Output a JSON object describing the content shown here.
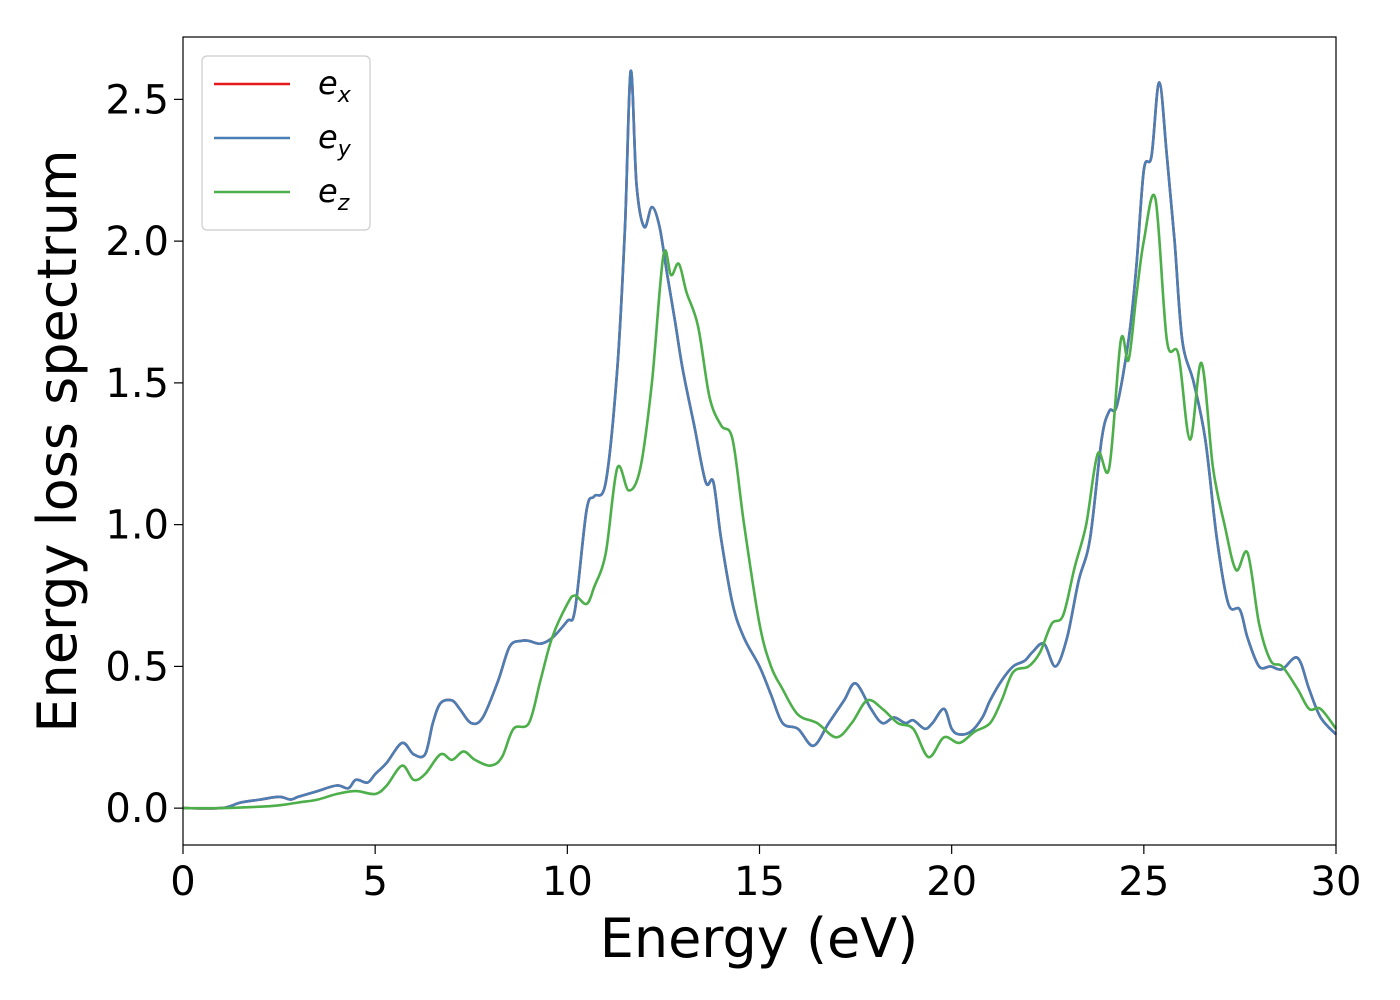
{
  "chart_data": {
    "type": "line",
    "xlabel": "Energy (eV)",
    "ylabel": "Energy loss spectrum",
    "xlim": [
      0,
      30
    ],
    "ylim": [
      -0.13,
      2.72
    ],
    "xticks": [
      0,
      5,
      10,
      15,
      20,
      25,
      30
    ],
    "xtick_labels": [
      "0",
      "5",
      "10",
      "15",
      "20",
      "25",
      "30"
    ],
    "yticks": [
      0.0,
      0.5,
      1.0,
      1.5,
      2.0,
      2.5
    ],
    "ytick_labels": [
      "0.0",
      "0.5",
      "1.0",
      "1.5",
      "2.0",
      "2.5"
    ],
    "grid": false,
    "legend_position": "top-left",
    "series": [
      {
        "name": "e",
        "sub": "x",
        "color": "#e41a1c",
        "x": [
          0,
          1,
          1.5,
          2,
          2.5,
          2.8,
          3,
          3.5,
          4,
          4.3,
          4.5,
          4.8,
          5,
          5.3,
          5.7,
          6,
          6.3,
          6.5,
          6.7,
          7,
          7.2,
          7.5,
          7.8,
          8.2,
          8.5,
          8.8,
          9,
          9.3,
          9.6,
          10,
          10.2,
          10.5,
          10.7,
          11,
          11.3,
          11.5,
          11.65,
          11.8,
          12,
          12.2,
          12.4,
          12.6,
          12.8,
          13,
          13.3,
          13.6,
          13.8,
          14,
          14.3,
          14.6,
          15,
          15.3,
          15.6,
          16,
          16.4,
          16.8,
          17.2,
          17.5,
          17.9,
          18.2,
          18.5,
          18.8,
          19,
          19.3,
          19.5,
          19.8,
          20,
          20.2,
          20.5,
          20.8,
          21,
          21.3,
          21.6,
          21.9,
          22.1,
          22.4,
          22.7,
          23,
          23.3,
          23.6,
          23.9,
          24.1,
          24.3,
          24.6,
          24.8,
          25,
          25.2,
          25.4,
          25.6,
          25.8,
          26,
          26.3,
          26.6,
          26.9,
          27.2,
          27.5,
          27.7,
          28,
          28.3,
          28.6,
          29,
          29.3,
          29.6,
          30
        ],
        "y": [
          0,
          0,
          0.02,
          0.03,
          0.04,
          0.03,
          0.04,
          0.06,
          0.08,
          0.07,
          0.1,
          0.09,
          0.12,
          0.16,
          0.23,
          0.19,
          0.19,
          0.3,
          0.37,
          0.38,
          0.35,
          0.3,
          0.32,
          0.45,
          0.57,
          0.59,
          0.59,
          0.58,
          0.6,
          0.66,
          0.7,
          1.05,
          1.1,
          1.15,
          1.55,
          2.05,
          2.6,
          2.2,
          2.05,
          2.12,
          2.05,
          1.88,
          1.72,
          1.55,
          1.35,
          1.15,
          1.15,
          0.95,
          0.72,
          0.6,
          0.5,
          0.4,
          0.3,
          0.28,
          0.22,
          0.3,
          0.38,
          0.44,
          0.35,
          0.3,
          0.32,
          0.3,
          0.31,
          0.28,
          0.3,
          0.35,
          0.28,
          0.26,
          0.27,
          0.32,
          0.38,
          0.45,
          0.5,
          0.52,
          0.55,
          0.58,
          0.5,
          0.6,
          0.8,
          0.95,
          1.3,
          1.4,
          1.42,
          1.65,
          1.9,
          2.25,
          2.3,
          2.56,
          2.3,
          2.0,
          1.65,
          1.5,
          1.3,
          0.95,
          0.72,
          0.7,
          0.6,
          0.5,
          0.5,
          0.49,
          0.53,
          0.42,
          0.32,
          0.26
        ]
      },
      {
        "name": "e",
        "sub": "y",
        "color": "#4a7fb5",
        "x": [
          0,
          1,
          1.5,
          2,
          2.5,
          2.8,
          3,
          3.5,
          4,
          4.3,
          4.5,
          4.8,
          5,
          5.3,
          5.7,
          6,
          6.3,
          6.5,
          6.7,
          7,
          7.2,
          7.5,
          7.8,
          8.2,
          8.5,
          8.8,
          9,
          9.3,
          9.6,
          10,
          10.2,
          10.5,
          10.7,
          11,
          11.3,
          11.5,
          11.65,
          11.8,
          12,
          12.2,
          12.4,
          12.6,
          12.8,
          13,
          13.3,
          13.6,
          13.8,
          14,
          14.3,
          14.6,
          15,
          15.3,
          15.6,
          16,
          16.4,
          16.8,
          17.2,
          17.5,
          17.9,
          18.2,
          18.5,
          18.8,
          19,
          19.3,
          19.5,
          19.8,
          20,
          20.2,
          20.5,
          20.8,
          21,
          21.3,
          21.6,
          21.9,
          22.1,
          22.4,
          22.7,
          23,
          23.3,
          23.6,
          23.9,
          24.1,
          24.3,
          24.6,
          24.8,
          25,
          25.2,
          25.4,
          25.6,
          25.8,
          26,
          26.3,
          26.6,
          26.9,
          27.2,
          27.5,
          27.7,
          28,
          28.3,
          28.6,
          29,
          29.3,
          29.6,
          30
        ],
        "y": [
          0,
          0,
          0.02,
          0.03,
          0.04,
          0.03,
          0.04,
          0.06,
          0.08,
          0.07,
          0.1,
          0.09,
          0.12,
          0.16,
          0.23,
          0.19,
          0.19,
          0.3,
          0.37,
          0.38,
          0.35,
          0.3,
          0.32,
          0.45,
          0.57,
          0.59,
          0.59,
          0.58,
          0.6,
          0.66,
          0.7,
          1.05,
          1.1,
          1.15,
          1.55,
          2.05,
          2.6,
          2.2,
          2.05,
          2.12,
          2.05,
          1.88,
          1.72,
          1.55,
          1.35,
          1.15,
          1.15,
          0.95,
          0.72,
          0.6,
          0.5,
          0.4,
          0.3,
          0.28,
          0.22,
          0.3,
          0.38,
          0.44,
          0.35,
          0.3,
          0.32,
          0.3,
          0.31,
          0.28,
          0.3,
          0.35,
          0.28,
          0.26,
          0.27,
          0.32,
          0.38,
          0.45,
          0.5,
          0.52,
          0.55,
          0.58,
          0.5,
          0.6,
          0.8,
          0.95,
          1.3,
          1.4,
          1.42,
          1.65,
          1.9,
          2.25,
          2.3,
          2.56,
          2.3,
          2.0,
          1.65,
          1.5,
          1.3,
          0.95,
          0.72,
          0.7,
          0.6,
          0.5,
          0.5,
          0.49,
          0.53,
          0.42,
          0.32,
          0.26
        ]
      },
      {
        "name": "e",
        "sub": "z",
        "color": "#4daf4a",
        "x": [
          0,
          1,
          2,
          2.5,
          3,
          3.5,
          4,
          4.5,
          5,
          5.3,
          5.7,
          6,
          6.3,
          6.7,
          7,
          7.3,
          7.6,
          8,
          8.3,
          8.6,
          9,
          9.3,
          9.6,
          10,
          10.2,
          10.5,
          10.7,
          11,
          11.3,
          11.6,
          11.9,
          12.2,
          12.5,
          12.7,
          12.9,
          13.1,
          13.4,
          13.7,
          14,
          14.3,
          14.6,
          15,
          15.3,
          15.6,
          16,
          16.5,
          17,
          17.4,
          17.8,
          18.2,
          18.6,
          19,
          19.4,
          19.8,
          20.2,
          20.6,
          21,
          21.3,
          21.6,
          22,
          22.3,
          22.6,
          22.9,
          23.2,
          23.5,
          23.8,
          24.1,
          24.4,
          24.6,
          24.8,
          25,
          25.3,
          25.6,
          25.9,
          26.2,
          26.5,
          26.8,
          27.1,
          27.4,
          27.7,
          28,
          28.3,
          28.6,
          29,
          29.3,
          29.6,
          30
        ],
        "y": [
          0,
          0,
          0.005,
          0.01,
          0.02,
          0.03,
          0.05,
          0.06,
          0.05,
          0.08,
          0.15,
          0.1,
          0.12,
          0.19,
          0.17,
          0.2,
          0.17,
          0.15,
          0.18,
          0.28,
          0.3,
          0.45,
          0.6,
          0.72,
          0.75,
          0.72,
          0.78,
          0.9,
          1.2,
          1.12,
          1.2,
          1.5,
          1.95,
          1.88,
          1.92,
          1.82,
          1.7,
          1.45,
          1.35,
          1.3,
          1.0,
          0.65,
          0.5,
          0.42,
          0.33,
          0.3,
          0.25,
          0.3,
          0.38,
          0.35,
          0.3,
          0.28,
          0.18,
          0.25,
          0.23,
          0.27,
          0.3,
          0.38,
          0.48,
          0.5,
          0.55,
          0.65,
          0.68,
          0.85,
          1.0,
          1.25,
          1.2,
          1.65,
          1.58,
          1.8,
          2.0,
          2.15,
          1.65,
          1.6,
          1.3,
          1.57,
          1.2,
          1.0,
          0.84,
          0.9,
          0.65,
          0.52,
          0.5,
          0.42,
          0.35,
          0.35,
          0.28
        ]
      }
    ]
  }
}
